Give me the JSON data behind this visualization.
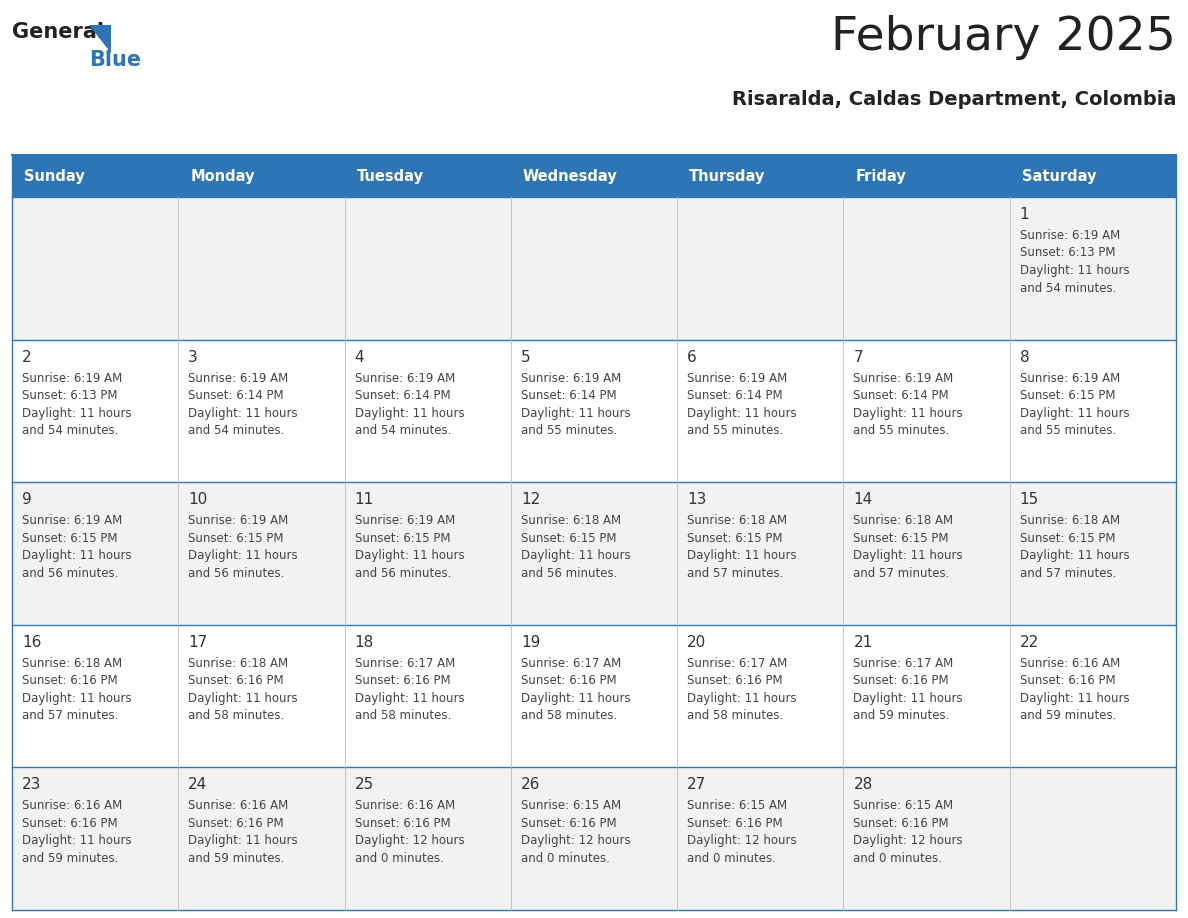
{
  "title": "February 2025",
  "subtitle": "Risaralda, Caldas Department, Colombia",
  "header_bg": "#2E75B6",
  "header_text_color": "#FFFFFF",
  "weekdays": [
    "Sunday",
    "Monday",
    "Tuesday",
    "Wednesday",
    "Thursday",
    "Friday",
    "Saturday"
  ],
  "bg_color": "#FFFFFF",
  "row_colors": [
    "#F2F2F2",
    "#FFFFFF",
    "#F2F2F2",
    "#FFFFFF",
    "#F2F2F2"
  ],
  "border_color": "#2E75B6",
  "day_number_color": "#333333",
  "info_text_color": "#444444",
  "logo_general_color": "#222222",
  "logo_blue_color": "#2E75B6",
  "days": [
    {
      "day": 1,
      "col": 6,
      "row": 0,
      "sunrise": "6:19 AM",
      "sunset": "6:13 PM",
      "daylight": "11 hours and 54 minutes."
    },
    {
      "day": 2,
      "col": 0,
      "row": 1,
      "sunrise": "6:19 AM",
      "sunset": "6:13 PM",
      "daylight": "11 hours and 54 minutes."
    },
    {
      "day": 3,
      "col": 1,
      "row": 1,
      "sunrise": "6:19 AM",
      "sunset": "6:14 PM",
      "daylight": "11 hours and 54 minutes."
    },
    {
      "day": 4,
      "col": 2,
      "row": 1,
      "sunrise": "6:19 AM",
      "sunset": "6:14 PM",
      "daylight": "11 hours and 54 minutes."
    },
    {
      "day": 5,
      "col": 3,
      "row": 1,
      "sunrise": "6:19 AM",
      "sunset": "6:14 PM",
      "daylight": "11 hours and 55 minutes."
    },
    {
      "day": 6,
      "col": 4,
      "row": 1,
      "sunrise": "6:19 AM",
      "sunset": "6:14 PM",
      "daylight": "11 hours and 55 minutes."
    },
    {
      "day": 7,
      "col": 5,
      "row": 1,
      "sunrise": "6:19 AM",
      "sunset": "6:14 PM",
      "daylight": "11 hours and 55 minutes."
    },
    {
      "day": 8,
      "col": 6,
      "row": 1,
      "sunrise": "6:19 AM",
      "sunset": "6:15 PM",
      "daylight": "11 hours and 55 minutes."
    },
    {
      "day": 9,
      "col": 0,
      "row": 2,
      "sunrise": "6:19 AM",
      "sunset": "6:15 PM",
      "daylight": "11 hours and 56 minutes."
    },
    {
      "day": 10,
      "col": 1,
      "row": 2,
      "sunrise": "6:19 AM",
      "sunset": "6:15 PM",
      "daylight": "11 hours and 56 minutes."
    },
    {
      "day": 11,
      "col": 2,
      "row": 2,
      "sunrise": "6:19 AM",
      "sunset": "6:15 PM",
      "daylight": "11 hours and 56 minutes."
    },
    {
      "day": 12,
      "col": 3,
      "row": 2,
      "sunrise": "6:18 AM",
      "sunset": "6:15 PM",
      "daylight": "11 hours and 56 minutes."
    },
    {
      "day": 13,
      "col": 4,
      "row": 2,
      "sunrise": "6:18 AM",
      "sunset": "6:15 PM",
      "daylight": "11 hours and 57 minutes."
    },
    {
      "day": 14,
      "col": 5,
      "row": 2,
      "sunrise": "6:18 AM",
      "sunset": "6:15 PM",
      "daylight": "11 hours and 57 minutes."
    },
    {
      "day": 15,
      "col": 6,
      "row": 2,
      "sunrise": "6:18 AM",
      "sunset": "6:15 PM",
      "daylight": "11 hours and 57 minutes."
    },
    {
      "day": 16,
      "col": 0,
      "row": 3,
      "sunrise": "6:18 AM",
      "sunset": "6:16 PM",
      "daylight": "11 hours and 57 minutes."
    },
    {
      "day": 17,
      "col": 1,
      "row": 3,
      "sunrise": "6:18 AM",
      "sunset": "6:16 PM",
      "daylight": "11 hours and 58 minutes."
    },
    {
      "day": 18,
      "col": 2,
      "row": 3,
      "sunrise": "6:17 AM",
      "sunset": "6:16 PM",
      "daylight": "11 hours and 58 minutes."
    },
    {
      "day": 19,
      "col": 3,
      "row": 3,
      "sunrise": "6:17 AM",
      "sunset": "6:16 PM",
      "daylight": "11 hours and 58 minutes."
    },
    {
      "day": 20,
      "col": 4,
      "row": 3,
      "sunrise": "6:17 AM",
      "sunset": "6:16 PM",
      "daylight": "11 hours and 58 minutes."
    },
    {
      "day": 21,
      "col": 5,
      "row": 3,
      "sunrise": "6:17 AM",
      "sunset": "6:16 PM",
      "daylight": "11 hours and 59 minutes."
    },
    {
      "day": 22,
      "col": 6,
      "row": 3,
      "sunrise": "6:16 AM",
      "sunset": "6:16 PM",
      "daylight": "11 hours and 59 minutes."
    },
    {
      "day": 23,
      "col": 0,
      "row": 4,
      "sunrise": "6:16 AM",
      "sunset": "6:16 PM",
      "daylight": "11 hours and 59 minutes."
    },
    {
      "day": 24,
      "col": 1,
      "row": 4,
      "sunrise": "6:16 AM",
      "sunset": "6:16 PM",
      "daylight": "11 hours and 59 minutes."
    },
    {
      "day": 25,
      "col": 2,
      "row": 4,
      "sunrise": "6:16 AM",
      "sunset": "6:16 PM",
      "daylight": "12 hours and 0 minutes."
    },
    {
      "day": 26,
      "col": 3,
      "row": 4,
      "sunrise": "6:15 AM",
      "sunset": "6:16 PM",
      "daylight": "12 hours and 0 minutes."
    },
    {
      "day": 27,
      "col": 4,
      "row": 4,
      "sunrise": "6:15 AM",
      "sunset": "6:16 PM",
      "daylight": "12 hours and 0 minutes."
    },
    {
      "day": 28,
      "col": 5,
      "row": 4,
      "sunrise": "6:15 AM",
      "sunset": "6:16 PM",
      "daylight": "12 hours and 0 minutes."
    }
  ]
}
